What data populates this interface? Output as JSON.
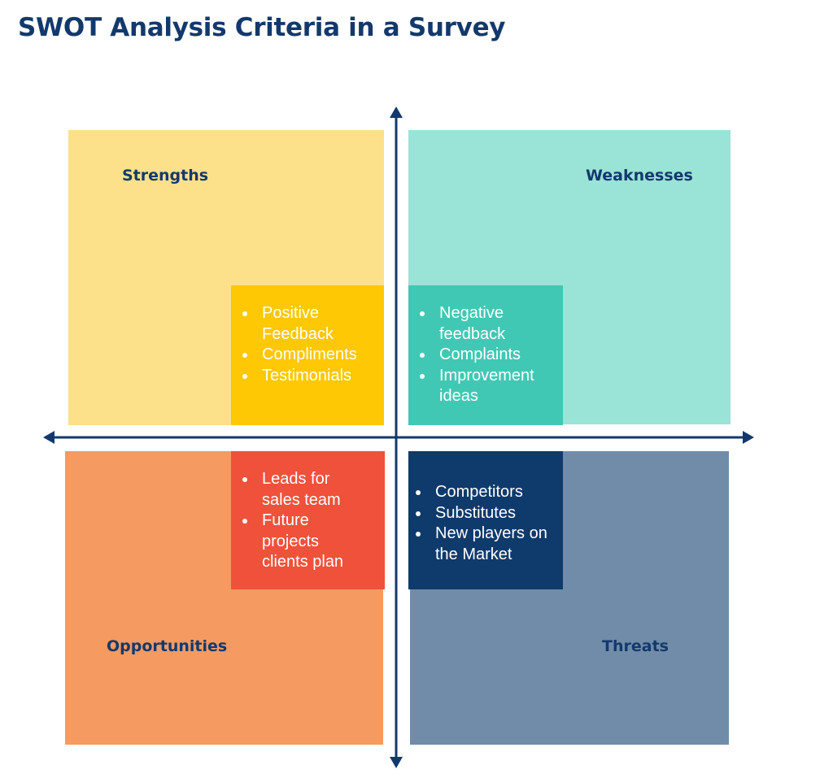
{
  "title": "SWOT Analysis Criteria in a Survey",
  "quadrants": {
    "strengths": {
      "label": "Strengths",
      "color": "#fde18a",
      "inner_color": "#fec805",
      "items": [
        "Positive Feedback",
        "Compliments",
        "Testimonials"
      ]
    },
    "weaknesses": {
      "label": "Weaknesses",
      "color": "#9ae3d7",
      "inner_color": "#41c8b4",
      "items": [
        "Negative feedback",
        "Complaints",
        "Improvement ideas"
      ]
    },
    "opportunities": {
      "label": "Opportunities",
      "color": "#f59a60",
      "inner_color": "#f0513a",
      "items": [
        "Leads for sales team",
        "Future projects clients plan"
      ]
    },
    "threats": {
      "label": "Threats",
      "color": "#718ca9",
      "inner_color": "#0f3a6c",
      "items": [
        "Competitors",
        "Substitutes",
        "New players on the Market"
      ]
    }
  },
  "axis_color": "#13396c"
}
